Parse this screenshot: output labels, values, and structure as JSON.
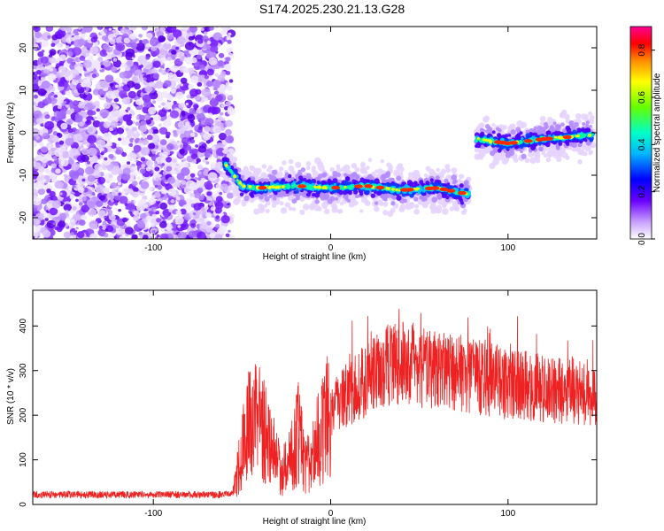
{
  "title": "S174.2025.230.21.13.G28",
  "chart_data": [
    {
      "type": "heatmap",
      "xlabel": "Height of straight line (km)",
      "ylabel": "Frequency (Hz)",
      "xlim": [
        -168,
        150
      ],
      "ylim": [
        -25,
        25
      ],
      "xticks": [
        -100,
        0,
        100
      ],
      "yticks": [
        -20,
        -10,
        0,
        10,
        20
      ],
      "colorbar": {
        "label": "Normalized spectral amplitude",
        "range": [
          0.0,
          0.9
        ],
        "ticks": [
          0.0,
          0.2,
          0.4,
          0.6,
          0.8
        ]
      },
      "signal_track": [
        {
          "x": -60,
          "y": -7
        },
        {
          "x": -50,
          "y": -12.5
        },
        {
          "x": -40,
          "y": -13
        },
        {
          "x": -20,
          "y": -12.5
        },
        {
          "x": 0,
          "y": -13
        },
        {
          "x": 20,
          "y": -12.5
        },
        {
          "x": 40,
          "y": -13.5
        },
        {
          "x": 60,
          "y": -13
        },
        {
          "x": 78,
          "y": -14.5
        },
        {
          "x": 82,
          "y": -1.5
        },
        {
          "x": 100,
          "y": -2.5
        },
        {
          "x": 120,
          "y": -1.5
        },
        {
          "x": 148,
          "y": -0.5
        }
      ]
    },
    {
      "type": "line",
      "xlabel": "Height of straight line (km)",
      "ylabel": "SNR (10 * v/v)",
      "xlim": [
        -168,
        150
      ],
      "ylim": [
        0,
        480
      ],
      "xticks": [
        -100,
        0,
        100
      ],
      "yticks": [
        0,
        100,
        200,
        300,
        400
      ],
      "color": "#ee2222",
      "envelope": [
        {
          "x": -168,
          "y": 22
        },
        {
          "x": -60,
          "y": 22
        },
        {
          "x": -55,
          "y": 25
        },
        {
          "x": -48,
          "y": 160
        },
        {
          "x": -42,
          "y": 200
        },
        {
          "x": -35,
          "y": 150
        },
        {
          "x": -28,
          "y": 70
        },
        {
          "x": -22,
          "y": 110
        },
        {
          "x": -18,
          "y": 160
        },
        {
          "x": -14,
          "y": 80
        },
        {
          "x": -10,
          "y": 120
        },
        {
          "x": 0,
          "y": 210
        },
        {
          "x": 20,
          "y": 280
        },
        {
          "x": 35,
          "y": 320
        },
        {
          "x": 60,
          "y": 300
        },
        {
          "x": 80,
          "y": 290
        },
        {
          "x": 100,
          "y": 270
        },
        {
          "x": 120,
          "y": 260
        },
        {
          "x": 150,
          "y": 250
        }
      ]
    }
  ]
}
